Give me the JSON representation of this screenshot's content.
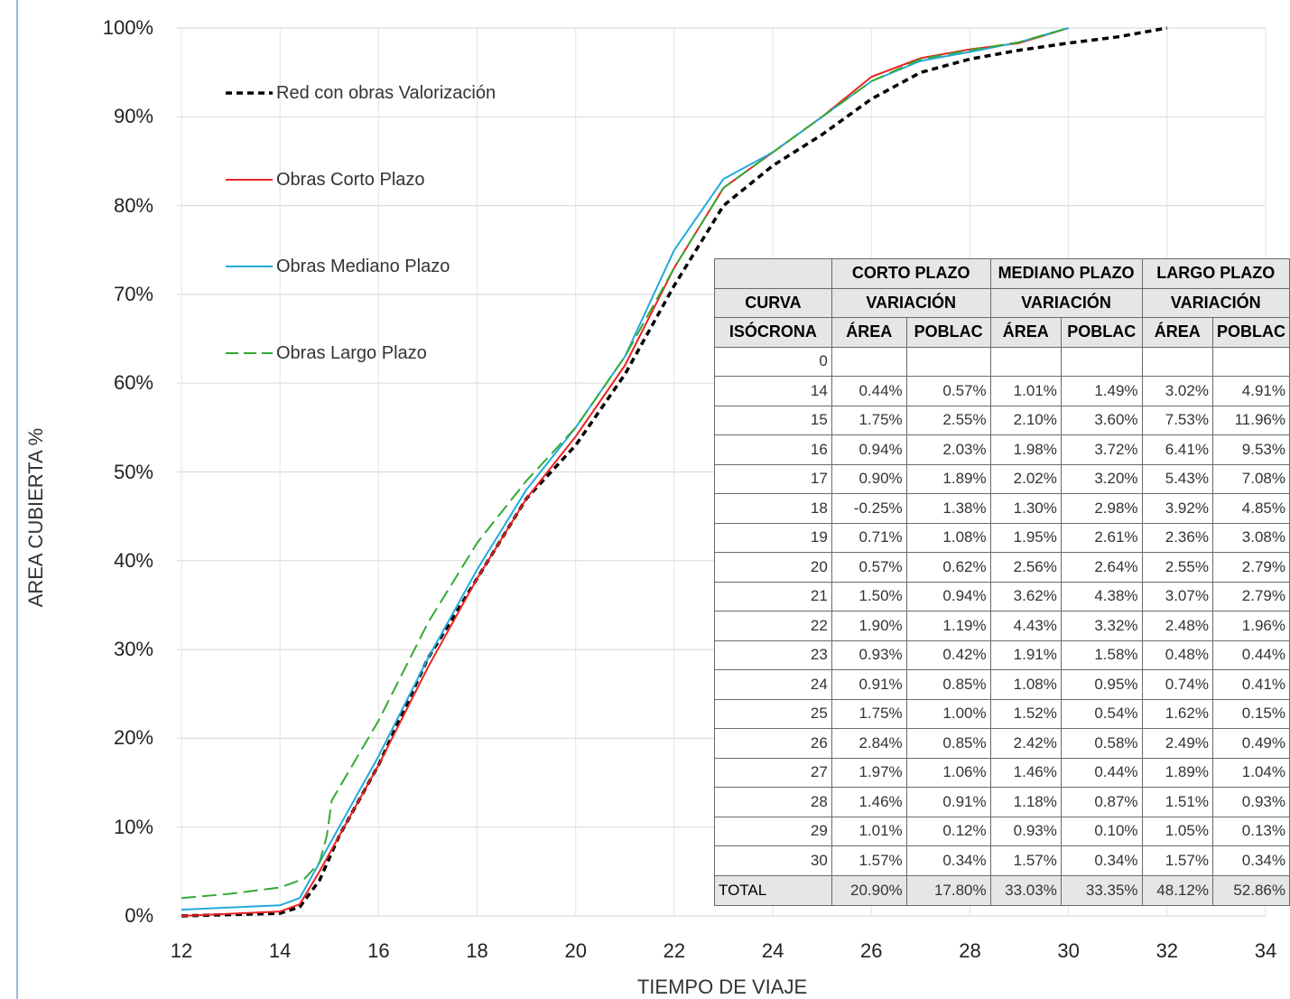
{
  "chart_data": {
    "type": "line",
    "title": "",
    "xlabel": "TIEMPO DE VIAJE",
    "ylabel": "AREA CUBIERTA %",
    "xlim": [
      12,
      34
    ],
    "ylim": [
      0,
      100
    ],
    "x_ticks": [
      "12",
      "14",
      "16",
      "18",
      "20",
      "22",
      "24",
      "26",
      "28",
      "30",
      "32",
      "34"
    ],
    "y_ticks": [
      "0%",
      "10%",
      "20%",
      "30%",
      "40%",
      "50%",
      "60%",
      "70%",
      "80%",
      "90%",
      "100%"
    ],
    "grid": true,
    "legend_position": "top-left",
    "series": [
      {
        "name": "Red con obras Valorización",
        "color": "#000000",
        "style": "dotted",
        "points": [
          [
            12,
            0
          ],
          [
            14,
            0.3
          ],
          [
            14.4,
            1
          ],
          [
            14.8,
            4
          ],
          [
            15.2,
            9
          ],
          [
            16,
            17
          ],
          [
            17,
            29
          ],
          [
            18,
            38
          ],
          [
            19,
            47
          ],
          [
            20,
            53
          ],
          [
            21,
            61
          ],
          [
            22,
            71
          ],
          [
            23,
            80
          ],
          [
            24,
            84.5
          ],
          [
            25,
            88
          ],
          [
            26,
            92
          ],
          [
            27,
            95
          ],
          [
            28,
            96.5
          ],
          [
            29,
            97.5
          ],
          [
            30,
            98.3
          ],
          [
            31,
            99
          ],
          [
            32,
            100
          ]
        ]
      },
      {
        "name": "Obras Corto Plazo",
        "color": "#ee2222",
        "style": "solid",
        "points": [
          [
            12,
            0
          ],
          [
            14,
            0.5
          ],
          [
            14.4,
            1.3
          ],
          [
            14.8,
            5
          ],
          [
            15.1,
            8
          ],
          [
            16,
            17
          ],
          [
            17,
            28
          ],
          [
            18,
            38
          ],
          [
            19,
            47
          ],
          [
            20,
            54
          ],
          [
            21,
            62
          ],
          [
            22,
            73
          ],
          [
            23,
            82
          ],
          [
            24,
            86
          ],
          [
            25,
            90
          ],
          [
            26,
            94.5
          ],
          [
            27,
            96.6
          ],
          [
            28,
            97.6
          ],
          [
            29,
            98.3
          ],
          [
            30,
            100
          ]
        ]
      },
      {
        "name": "Obras Mediano Plazo",
        "color": "#22aadd",
        "style": "solid",
        "points": [
          [
            12,
            0.7
          ],
          [
            14,
            1.2
          ],
          [
            14.4,
            2
          ],
          [
            14.8,
            6
          ],
          [
            15.1,
            9
          ],
          [
            16,
            18
          ],
          [
            17,
            29
          ],
          [
            18,
            39
          ],
          [
            19,
            48
          ],
          [
            20,
            55
          ],
          [
            21,
            63
          ],
          [
            22,
            75
          ],
          [
            23,
            83
          ],
          [
            24,
            86
          ],
          [
            25,
            90
          ],
          [
            26,
            94
          ],
          [
            27,
            96.3
          ],
          [
            28,
            97.3
          ],
          [
            29,
            98.4
          ],
          [
            30,
            100
          ]
        ]
      },
      {
        "name": "Obras Largo Plazo",
        "color": "#33aa33",
        "style": "dashed",
        "points": [
          [
            12,
            2
          ],
          [
            13,
            2.5
          ],
          [
            14,
            3.2
          ],
          [
            14.5,
            4.2
          ],
          [
            14.8,
            6
          ],
          [
            14.95,
            9
          ],
          [
            15.05,
            13
          ],
          [
            16,
            22
          ],
          [
            17,
            33
          ],
          [
            18,
            42
          ],
          [
            19,
            49
          ],
          [
            20,
            55
          ],
          [
            21,
            63
          ],
          [
            22,
            73
          ],
          [
            23,
            82
          ],
          [
            24,
            86
          ],
          [
            25,
            90
          ],
          [
            26,
            94
          ],
          [
            27,
            96.5
          ],
          [
            28,
            97.5
          ],
          [
            29,
            98.4
          ],
          [
            30,
            100
          ]
        ]
      }
    ]
  },
  "table": {
    "group_headers": [
      "CORTO PLAZO",
      "MEDIANO PLAZO",
      "LARGO PLAZO"
    ],
    "curva_label": "CURVA",
    "variacion_labels": [
      "VARIACIÓN",
      "VARIACIÓN",
      "VARIACIÓN"
    ],
    "isocrona_label": "ISÓCRONA",
    "sub_headers": [
      "ÁREA",
      "POBLAC",
      "ÁREA",
      "POBLAC",
      "ÁREA",
      "POBLAC"
    ],
    "rows": [
      [
        "0",
        "",
        "",
        "",
        "",
        "",
        ""
      ],
      [
        "14",
        "0.44%",
        "0.57%",
        "1.01%",
        "1.49%",
        "3.02%",
        "4.91%"
      ],
      [
        "15",
        "1.75%",
        "2.55%",
        "2.10%",
        "3.60%",
        "7.53%",
        "11.96%"
      ],
      [
        "16",
        "0.94%",
        "2.03%",
        "1.98%",
        "3.72%",
        "6.41%",
        "9.53%"
      ],
      [
        "17",
        "0.90%",
        "1.89%",
        "2.02%",
        "3.20%",
        "5.43%",
        "7.08%"
      ],
      [
        "18",
        "-0.25%",
        "1.38%",
        "1.30%",
        "2.98%",
        "3.92%",
        "4.85%"
      ],
      [
        "19",
        "0.71%",
        "1.08%",
        "1.95%",
        "2.61%",
        "2.36%",
        "3.08%"
      ],
      [
        "20",
        "0.57%",
        "0.62%",
        "2.56%",
        "2.64%",
        "2.55%",
        "2.79%"
      ],
      [
        "21",
        "1.50%",
        "0.94%",
        "3.62%",
        "4.38%",
        "3.07%",
        "2.79%"
      ],
      [
        "22",
        "1.90%",
        "1.19%",
        "4.43%",
        "3.32%",
        "2.48%",
        "1.96%"
      ],
      [
        "23",
        "0.93%",
        "0.42%",
        "1.91%",
        "1.58%",
        "0.48%",
        "0.44%"
      ],
      [
        "24",
        "0.91%",
        "0.85%",
        "1.08%",
        "0.95%",
        "0.74%",
        "0.41%"
      ],
      [
        "25",
        "1.75%",
        "1.00%",
        "1.52%",
        "0.54%",
        "1.62%",
        "0.15%"
      ],
      [
        "26",
        "2.84%",
        "0.85%",
        "2.42%",
        "0.58%",
        "2.49%",
        "0.49%"
      ],
      [
        "27",
        "1.97%",
        "1.06%",
        "1.46%",
        "0.44%",
        "1.89%",
        "1.04%"
      ],
      [
        "28",
        "1.46%",
        "0.91%",
        "1.18%",
        "0.87%",
        "1.51%",
        "0.93%"
      ],
      [
        "29",
        "1.01%",
        "0.12%",
        "0.93%",
        "0.10%",
        "1.05%",
        "0.13%"
      ],
      [
        "30",
        "1.57%",
        "0.34%",
        "1.57%",
        "0.34%",
        "1.57%",
        "0.34%"
      ]
    ],
    "total": [
      "TOTAL",
      "20.90%",
      "17.80%",
      "33.03%",
      "33.35%",
      "48.12%",
      "52.86%"
    ]
  }
}
